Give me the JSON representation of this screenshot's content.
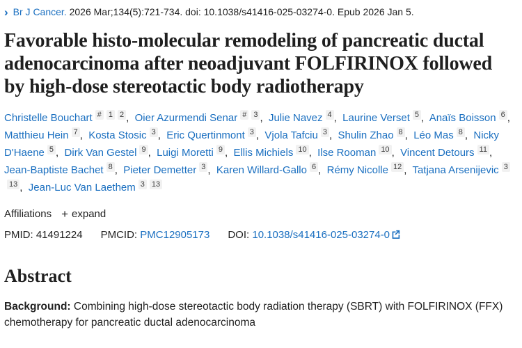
{
  "page": {
    "link_color": "#1a6fc0"
  },
  "citation": {
    "chevron": "›",
    "journal": "Br J Cancer.",
    "rest": " 2026 Mar;134(5):721-734. doi: 10.1038/s41416-025-03274-0. Epub 2026 Jan 5."
  },
  "title": "Favorable histo-molecular remodeling of pancreatic ductal adenocarcinoma after neoadjuvant FOLFIRINOX followed by high-dose stereotactic body radiotherapy",
  "authors": [
    {
      "name": "Christelle Bouchart",
      "sups": [
        "#",
        "1",
        "2"
      ]
    },
    {
      "name": "Oier Azurmendi Senar",
      "sups": [
        "#",
        "3"
      ]
    },
    {
      "name": "Julie Navez",
      "sups": [
        "4"
      ]
    },
    {
      "name": "Laurine Verset",
      "sups": [
        "5"
      ]
    },
    {
      "name": "Anaïs Boisson",
      "sups": [
        "6"
      ]
    },
    {
      "name": "Matthieu Hein",
      "sups": [
        "7"
      ]
    },
    {
      "name": "Kosta Stosic",
      "sups": [
        "3"
      ]
    },
    {
      "name": "Eric Quertinmont",
      "sups": [
        "3"
      ]
    },
    {
      "name": "Vjola Tafciu",
      "sups": [
        "3"
      ]
    },
    {
      "name": "Shulin Zhao",
      "sups": [
        "8"
      ]
    },
    {
      "name": "Léo Mas",
      "sups": [
        "8"
      ]
    },
    {
      "name": "Nicky D'Haene",
      "sups": [
        "5"
      ]
    },
    {
      "name": "Dirk Van Gestel",
      "sups": [
        "9"
      ]
    },
    {
      "name": "Luigi Moretti",
      "sups": [
        "9"
      ]
    },
    {
      "name": "Ellis Michiels",
      "sups": [
        "10"
      ]
    },
    {
      "name": "Ilse Rooman",
      "sups": [
        "10"
      ]
    },
    {
      "name": "Vincent Detours",
      "sups": [
        "11"
      ]
    },
    {
      "name": "Jean-Baptiste Bachet",
      "sups": [
        "8"
      ]
    },
    {
      "name": "Pieter Demetter",
      "sups": [
        "3"
      ]
    },
    {
      "name": "Karen Willard-Gallo",
      "sups": [
        "6"
      ]
    },
    {
      "name": "Rémy Nicolle",
      "sups": [
        "12"
      ]
    },
    {
      "name": "Tatjana Arsenijevic",
      "sups": [
        "3",
        "13"
      ]
    },
    {
      "name": "Jean-Luc Van Laethem",
      "sups": [
        "3",
        "13"
      ]
    }
  ],
  "affiliations": {
    "label": "Affiliations",
    "plus": "+",
    "expand_label": "expand"
  },
  "identifiers": {
    "pmid_label": "PMID:",
    "pmid_value": "41491224",
    "pmcid_label": "PMCID:",
    "pmcid_value": "PMC12905173",
    "doi_label": "DOI:",
    "doi_value": "10.1038/s41416-025-03274-0"
  },
  "abstract": {
    "heading": "Abstract",
    "background_label": "Background:",
    "background_text": " Combining high-dose stereotactic body radiation therapy (SBRT) with FOLFIRINOX (FFX) chemotherapy for pancreatic ductal adenocarcinoma"
  }
}
